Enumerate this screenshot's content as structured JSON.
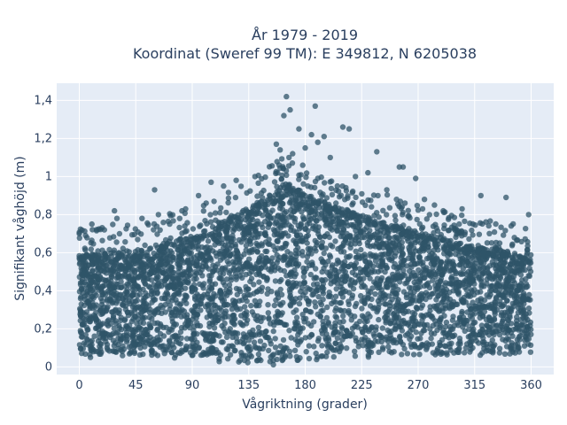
{
  "chart_data": {
    "type": "scatter",
    "title_line1": "År 1979 - 2019",
    "title_line2": "Koordinat (Sweref 99 TM): E 349812, N 6205038",
    "xlabel": "Vågriktning (grader)",
    "ylabel": "Signifikant våghöjd (m)",
    "xlim": [
      -18,
      378
    ],
    "ylim": [
      -0.04,
      1.49
    ],
    "x_ticks": [
      0,
      45,
      90,
      135,
      180,
      225,
      270,
      315,
      360
    ],
    "y_ticks": [
      0,
      0.2,
      0.4,
      0.6,
      0.8,
      1.0,
      1.2,
      1.4
    ],
    "y_tick_labels": [
      "0",
      "0,2",
      "0,4",
      "0,6",
      "0,8",
      "1",
      "1,2",
      "1,4"
    ],
    "grid": true,
    "marker_color": "#2f5468",
    "plot_background": "#e5ecf6",
    "envelope": {
      "x": [
        0,
        45,
        90,
        135,
        165,
        180,
        225,
        270,
        315,
        360
      ],
      "ymax": [
        0.58,
        0.6,
        0.68,
        0.82,
        0.96,
        0.9,
        0.78,
        0.7,
        0.62,
        0.58
      ],
      "ymin": [
        0.06,
        0.06,
        0.05,
        0.02,
        0.02,
        0.03,
        0.06,
        0.07,
        0.07,
        0.06
      ]
    },
    "outliers": [
      {
        "x": 165,
        "y": 1.42
      },
      {
        "x": 168,
        "y": 1.35
      },
      {
        "x": 163,
        "y": 1.32
      },
      {
        "x": 188,
        "y": 1.37
      },
      {
        "x": 175,
        "y": 1.25
      },
      {
        "x": 185,
        "y": 1.22
      },
      {
        "x": 195,
        "y": 1.21
      },
      {
        "x": 210,
        "y": 1.26
      },
      {
        "x": 215,
        "y": 1.25
      },
      {
        "x": 237,
        "y": 1.13
      },
      {
        "x": 200,
        "y": 1.1
      },
      {
        "x": 180,
        "y": 1.15
      },
      {
        "x": 157,
        "y": 1.17
      },
      {
        "x": 160,
        "y": 1.14
      },
      {
        "x": 170,
        "y": 1.12
      },
      {
        "x": 190,
        "y": 1.18
      },
      {
        "x": 258,
        "y": 1.05
      },
      {
        "x": 255,
        "y": 1.05
      },
      {
        "x": 268,
        "y": 0.99
      },
      {
        "x": 230,
        "y": 1.02
      },
      {
        "x": 220,
        "y": 1.0
      },
      {
        "x": 140,
        "y": 1.0
      },
      {
        "x": 125,
        "y": 0.98
      },
      {
        "x": 105,
        "y": 0.97
      },
      {
        "x": 60,
        "y": 0.93
      },
      {
        "x": 95,
        "y": 0.9
      },
      {
        "x": 115,
        "y": 0.95
      },
      {
        "x": 320,
        "y": 0.9
      },
      {
        "x": 340,
        "y": 0.89
      },
      {
        "x": 305,
        "y": 0.83
      },
      {
        "x": 290,
        "y": 0.82
      },
      {
        "x": 28,
        "y": 0.82
      },
      {
        "x": 30,
        "y": 0.78
      },
      {
        "x": 63,
        "y": 0.8
      },
      {
        "x": 50,
        "y": 0.78
      },
      {
        "x": 10,
        "y": 0.75
      },
      {
        "x": 358,
        "y": 0.8
      },
      {
        "x": 0,
        "y": 0.7
      },
      {
        "x": 5,
        "y": 0.69
      },
      {
        "x": 20,
        "y": 0.72
      },
      {
        "x": 80,
        "y": 0.78
      },
      {
        "x": 72,
        "y": 0.75
      },
      {
        "x": 283,
        "y": 0.85
      },
      {
        "x": 275,
        "y": 0.88
      },
      {
        "x": 245,
        "y": 0.93
      }
    ]
  }
}
